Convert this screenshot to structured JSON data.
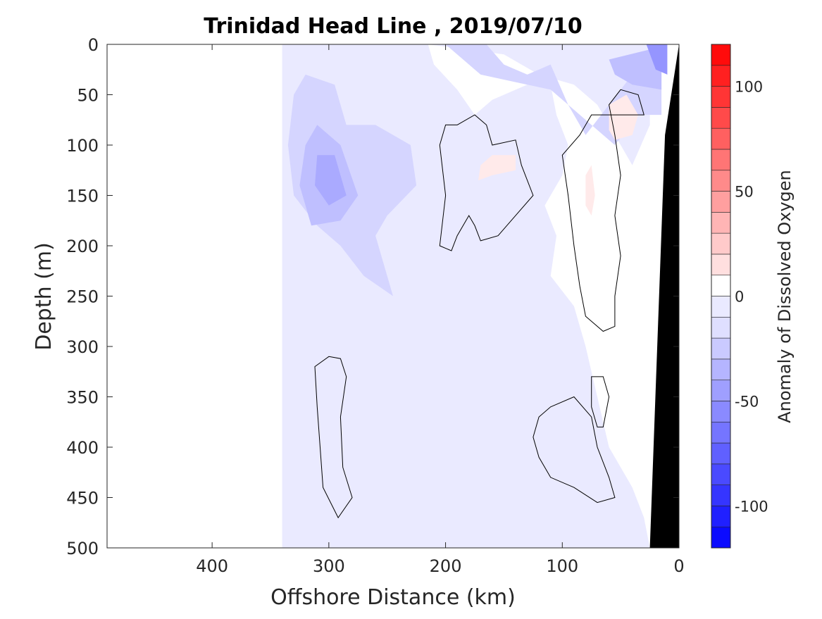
{
  "chart_data": {
    "type": "heatmap",
    "title": "Trinidad Head Line , 2019/07/10",
    "xlabel": "Offshore Distance (km)",
    "ylabel": "Depth (m)",
    "xlim": [
      490,
      0
    ],
    "ylim": [
      500,
      0
    ],
    "x_ticks": [
      400,
      300,
      200,
      100,
      0
    ],
    "y_ticks": [
      0,
      50,
      100,
      150,
      200,
      250,
      300,
      350,
      400,
      450,
      500
    ],
    "colorbar": {
      "label": "Anomaly of Dissolved Oxygen",
      "range": [
        -120,
        120
      ],
      "step": 10,
      "ticks": [
        100,
        50,
        0,
        -50,
        -100
      ],
      "positive_color": "#ff0000",
      "negative_color": "#0000ff",
      "zero_color": "#ffffff"
    },
    "data_coverage_x": [
      340,
      0
    ],
    "land_color": "#000000",
    "negative_regions": [
      {
        "level": -10,
        "points": [
          [
            340,
            0
          ],
          [
            215,
            0
          ],
          [
            210,
            20
          ],
          [
            190,
            45
          ],
          [
            175,
            70
          ],
          [
            160,
            55
          ],
          [
            130,
            40
          ],
          [
            110,
            40
          ],
          [
            105,
            70
          ],
          [
            95,
            100
          ],
          [
            100,
            130
          ],
          [
            115,
            160
          ],
          [
            105,
            190
          ],
          [
            110,
            230
          ],
          [
            90,
            260
          ],
          [
            80,
            300
          ],
          [
            70,
            350
          ],
          [
            60,
            400
          ],
          [
            40,
            440
          ],
          [
            30,
            470
          ],
          [
            25,
            500
          ],
          [
            340,
            500
          ]
        ]
      },
      {
        "level": -10,
        "points": [
          [
            215,
            0
          ],
          [
            25,
            0
          ],
          [
            25,
            80
          ],
          [
            40,
            120
          ],
          [
            55,
            90
          ],
          [
            70,
            60
          ],
          [
            90,
            40
          ],
          [
            120,
            30
          ],
          [
            150,
            10
          ]
        ]
      },
      {
        "level": -20,
        "points": [
          [
            330,
            50
          ],
          [
            320,
            30
          ],
          [
            295,
            40
          ],
          [
            285,
            80
          ],
          [
            260,
            80
          ],
          [
            230,
            100
          ],
          [
            225,
            140
          ],
          [
            250,
            170
          ],
          [
            260,
            190
          ],
          [
            245,
            250
          ],
          [
            270,
            230
          ],
          [
            290,
            200
          ],
          [
            310,
            180
          ],
          [
            330,
            150
          ],
          [
            335,
            100
          ]
        ]
      },
      {
        "level": -20,
        "points": [
          [
            200,
            0
          ],
          [
            165,
            0
          ],
          [
            150,
            20
          ],
          [
            130,
            30
          ],
          [
            110,
            20
          ],
          [
            95,
            60
          ],
          [
            80,
            90
          ],
          [
            60,
            60
          ],
          [
            40,
            30
          ],
          [
            25,
            10
          ],
          [
            15,
            10
          ],
          [
            15,
            70
          ],
          [
            35,
            70
          ],
          [
            55,
            100
          ],
          [
            75,
            80
          ],
          [
            90,
            65
          ],
          [
            110,
            45
          ],
          [
            130,
            40
          ],
          [
            170,
            30
          ]
        ]
      },
      {
        "level": -30,
        "points": [
          [
            320,
            100
          ],
          [
            310,
            80
          ],
          [
            290,
            100
          ],
          [
            275,
            150
          ],
          [
            290,
            175
          ],
          [
            315,
            180
          ],
          [
            325,
            140
          ]
        ]
      },
      {
        "level": -30,
        "points": [
          [
            60,
            15
          ],
          [
            25,
            5
          ],
          [
            15,
            5
          ],
          [
            15,
            45
          ],
          [
            40,
            40
          ],
          [
            55,
            30
          ]
        ]
      },
      {
        "level": -40,
        "points": [
          [
            310,
            110
          ],
          [
            295,
            110
          ],
          [
            285,
            150
          ],
          [
            300,
            160
          ],
          [
            312,
            140
          ]
        ]
      },
      {
        "level": -50,
        "points": [
          [
            28,
            0
          ],
          [
            10,
            0
          ],
          [
            10,
            30
          ],
          [
            20,
            25
          ]
        ]
      }
    ],
    "positive_regions": [
      {
        "level": 10,
        "points": [
          [
            170,
            120
          ],
          [
            160,
            110
          ],
          [
            140,
            110
          ],
          [
            140,
            125
          ],
          [
            160,
            130
          ],
          [
            172,
            135
          ]
        ]
      },
      {
        "level": 10,
        "points": [
          [
            60,
            60
          ],
          [
            45,
            50
          ],
          [
            35,
            70
          ],
          [
            40,
            90
          ],
          [
            55,
            95
          ],
          [
            60,
            85
          ]
        ]
      },
      {
        "level": 10,
        "points": [
          [
            80,
            130
          ],
          [
            75,
            120
          ],
          [
            72,
            150
          ],
          [
            75,
            170
          ],
          [
            80,
            160
          ]
        ]
      }
    ],
    "zero_contours": [
      [
        [
          300,
          310
        ],
        [
          290,
          312
        ],
        [
          285,
          330
        ],
        [
          290,
          370
        ],
        [
          288,
          420
        ],
        [
          280,
          450
        ],
        [
          292,
          470
        ],
        [
          305,
          440
        ],
        [
          310,
          360
        ],
        [
          312,
          320
        ]
      ],
      [
        [
          190,
          80
        ],
        [
          175,
          70
        ],
        [
          165,
          80
        ],
        [
          160,
          100
        ],
        [
          140,
          95
        ],
        [
          135,
          120
        ],
        [
          125,
          150
        ],
        [
          140,
          170
        ],
        [
          155,
          190
        ],
        [
          170,
          195
        ],
        [
          175,
          180
        ],
        [
          180,
          170
        ],
        [
          190,
          190
        ],
        [
          195,
          205
        ],
        [
          205,
          200
        ],
        [
          200,
          150
        ],
        [
          205,
          100
        ],
        [
          200,
          80
        ]
      ],
      [
        [
          110,
          360
        ],
        [
          90,
          350
        ],
        [
          75,
          370
        ],
        [
          70,
          400
        ],
        [
          60,
          430
        ],
        [
          55,
          450
        ],
        [
          70,
          455
        ],
        [
          90,
          440
        ],
        [
          110,
          430
        ],
        [
          120,
          410
        ],
        [
          125,
          390
        ],
        [
          120,
          370
        ]
      ],
      [
        [
          30,
          70
        ],
        [
          35,
          50
        ],
        [
          50,
          45
        ],
        [
          60,
          60
        ],
        [
          55,
          90
        ],
        [
          50,
          130
        ],
        [
          55,
          170
        ],
        [
          50,
          210
        ],
        [
          55,
          250
        ],
        [
          55,
          280
        ],
        [
          65,
          285
        ],
        [
          80,
          270
        ],
        [
          85,
          240
        ],
        [
          90,
          200
        ],
        [
          95,
          150
        ],
        [
          100,
          110
        ],
        [
          85,
          90
        ],
        [
          75,
          70
        ]
      ],
      [
        [
          75,
          330
        ],
        [
          65,
          330
        ],
        [
          60,
          350
        ],
        [
          65,
          380
        ],
        [
          70,
          380
        ],
        [
          75,
          360
        ]
      ]
    ]
  }
}
